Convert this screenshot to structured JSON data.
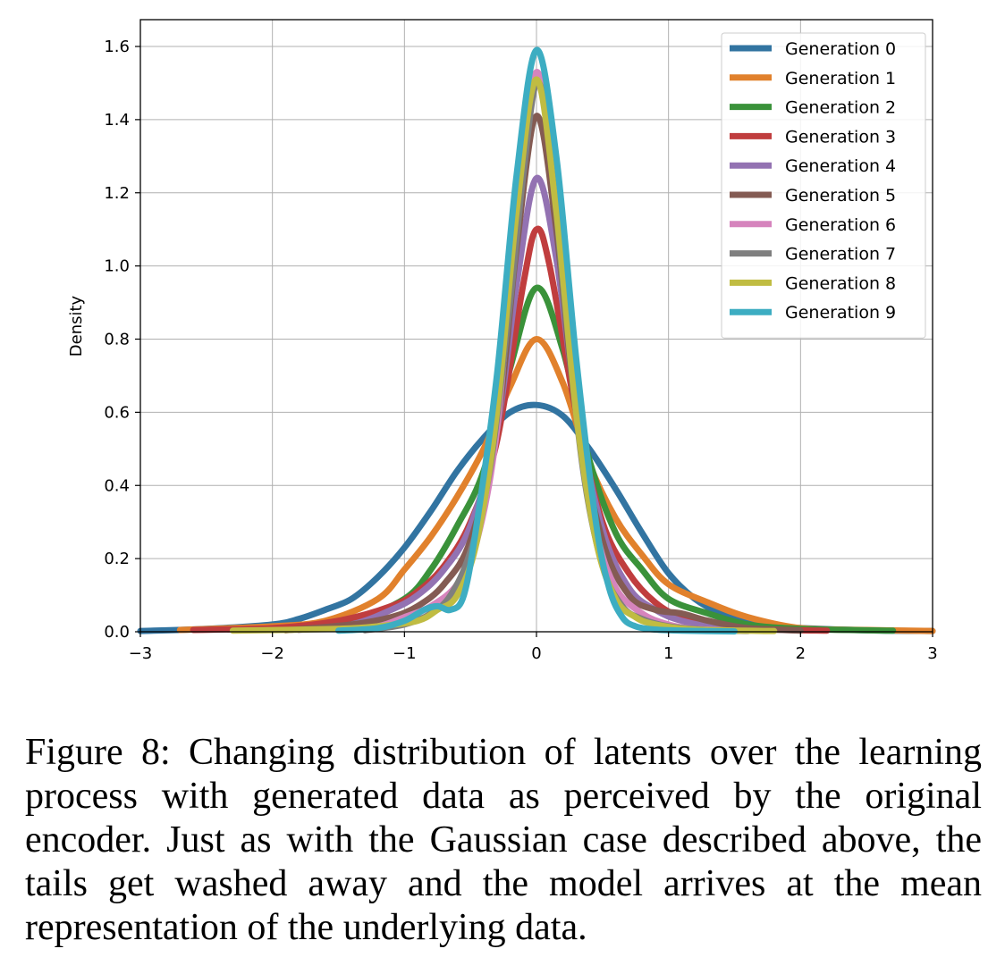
{
  "caption": "Figure 8: Changing distribution of latents over the learning process with generated data as perceived by the original encoder. Just as with the Gaussian case described above, the tails get washed away and the model arrives at the mean representation of the underlying data.",
  "chart_data": {
    "type": "line",
    "title": "",
    "xlabel": "",
    "ylabel": "Density",
    "xlim": [
      -3,
      3
    ],
    "ylim": [
      0,
      1.65
    ],
    "xticks": [
      -3,
      -2,
      -1,
      0,
      1,
      2,
      3
    ],
    "xtick_labels": [
      "−3",
      "−2",
      "−1",
      "0",
      "1",
      "2",
      "3"
    ],
    "yticks": [
      0.0,
      0.2,
      0.4,
      0.6,
      0.8,
      1.0,
      1.2,
      1.4,
      1.6
    ],
    "ytick_labels": [
      "0.0",
      "0.2",
      "0.4",
      "0.6",
      "0.8",
      "1.0",
      "1.2",
      "1.4",
      "1.6"
    ],
    "grid": true,
    "legend_position": "top-right",
    "series": [
      {
        "name": "Generation 0",
        "color": "#3274a1",
        "x": [
          -3.0,
          -2.5,
          -2.0,
          -1.8,
          -1.6,
          -1.4,
          -1.2,
          -1.0,
          -0.8,
          -0.6,
          -0.4,
          -0.2,
          0.0,
          0.2,
          0.4,
          0.6,
          0.8,
          1.0,
          1.2,
          1.4,
          1.6,
          1.8,
          2.0,
          2.5,
          3.0
        ],
        "y": [
          0.002,
          0.008,
          0.02,
          0.035,
          0.06,
          0.09,
          0.15,
          0.23,
          0.33,
          0.44,
          0.53,
          0.6,
          0.62,
          0.59,
          0.5,
          0.39,
          0.27,
          0.16,
          0.09,
          0.05,
          0.03,
          0.015,
          0.01,
          0.004,
          0.002
        ]
      },
      {
        "name": "Generation 1",
        "color": "#e1812c",
        "x": [
          -2.7,
          -2.0,
          -1.6,
          -1.2,
          -1.0,
          -0.8,
          -0.6,
          -0.4,
          -0.2,
          0.0,
          0.2,
          0.4,
          0.6,
          0.8,
          1.0,
          1.3,
          1.6,
          2.0,
          2.5,
          3.0
        ],
        "y": [
          0.005,
          0.015,
          0.03,
          0.09,
          0.17,
          0.26,
          0.37,
          0.5,
          0.67,
          0.8,
          0.68,
          0.46,
          0.31,
          0.21,
          0.13,
          0.08,
          0.04,
          0.01,
          0.005,
          0.002
        ]
      },
      {
        "name": "Generation 2",
        "color": "#3a923a",
        "x": [
          -2.3,
          -1.8,
          -1.4,
          -1.0,
          -0.8,
          -0.6,
          -0.4,
          -0.2,
          0.0,
          0.2,
          0.4,
          0.6,
          0.8,
          1.0,
          1.3,
          1.6,
          2.0,
          2.7
        ],
        "y": [
          0.005,
          0.01,
          0.03,
          0.09,
          0.17,
          0.29,
          0.44,
          0.72,
          0.94,
          0.77,
          0.47,
          0.27,
          0.17,
          0.09,
          0.05,
          0.02,
          0.008,
          0.003
        ]
      },
      {
        "name": "Generation 3",
        "color": "#c03d3e",
        "x": [
          -2.6,
          -2.0,
          -1.5,
          -1.1,
          -0.9,
          -0.7,
          -0.5,
          -0.3,
          -0.1,
          0.0,
          0.1,
          0.3,
          0.5,
          0.7,
          0.9,
          1.1,
          1.4,
          1.8,
          2.2
        ],
        "y": [
          0.005,
          0.01,
          0.03,
          0.07,
          0.11,
          0.18,
          0.3,
          0.52,
          0.95,
          1.1,
          1.0,
          0.6,
          0.3,
          0.16,
          0.08,
          0.04,
          0.015,
          0.006,
          0.003
        ]
      },
      {
        "name": "Generation 4",
        "color": "#9372b2",
        "x": [
          -1.8,
          -1.4,
          -1.1,
          -0.9,
          -0.7,
          -0.5,
          -0.3,
          -0.15,
          0.0,
          0.15,
          0.3,
          0.5,
          0.7,
          0.9,
          1.1,
          1.4,
          1.8
        ],
        "y": [
          0.005,
          0.02,
          0.06,
          0.1,
          0.17,
          0.29,
          0.55,
          0.95,
          1.24,
          1.02,
          0.62,
          0.28,
          0.12,
          0.06,
          0.03,
          0.01,
          0.004
        ]
      },
      {
        "name": "Generation 5",
        "color": "#845b53",
        "x": [
          -1.9,
          -1.4,
          -1.1,
          -0.9,
          -0.7,
          -0.5,
          -0.3,
          -0.15,
          0.0,
          0.15,
          0.3,
          0.5,
          0.7,
          0.9,
          1.1,
          1.3,
          1.6,
          2.0
        ],
        "y": [
          0.004,
          0.02,
          0.04,
          0.07,
          0.13,
          0.25,
          0.55,
          1.05,
          1.41,
          1.1,
          0.6,
          0.25,
          0.1,
          0.06,
          0.05,
          0.03,
          0.01,
          0.003
        ]
      },
      {
        "name": "Generation 6",
        "color": "#d684bd",
        "x": [
          -1.5,
          -1.2,
          -1.0,
          -0.8,
          -0.6,
          -0.45,
          -0.3,
          -0.15,
          0.0,
          0.15,
          0.3,
          0.45,
          0.6,
          0.8,
          1.0,
          1.2,
          1.5
        ],
        "y": [
          0.004,
          0.015,
          0.04,
          0.07,
          0.13,
          0.25,
          0.55,
          1.15,
          1.53,
          1.2,
          0.62,
          0.28,
          0.12,
          0.05,
          0.02,
          0.008,
          0.003
        ]
      },
      {
        "name": "Generation 7",
        "color": "#7f7f7f",
        "x": [
          -1.3,
          -1.0,
          -0.8,
          -0.65,
          -0.5,
          -0.35,
          -0.2,
          -0.1,
          0.0,
          0.1,
          0.2,
          0.35,
          0.5,
          0.65,
          0.8,
          1.0,
          1.3,
          1.6
        ],
        "y": [
          0.004,
          0.02,
          0.05,
          0.1,
          0.22,
          0.45,
          0.9,
          1.25,
          1.5,
          1.35,
          0.95,
          0.45,
          0.18,
          0.07,
          0.035,
          0.015,
          0.005,
          0.002
        ]
      },
      {
        "name": "Generation 8",
        "color": "#c0bc42",
        "x": [
          -2.3,
          -1.5,
          -1.2,
          -0.9,
          -0.75,
          -0.6,
          -0.45,
          -0.3,
          -0.15,
          0.0,
          0.15,
          0.3,
          0.45,
          0.6,
          0.75,
          0.9,
          1.2,
          1.8
        ],
        "y": [
          0.003,
          0.008,
          0.015,
          0.03,
          0.06,
          0.1,
          0.25,
          0.6,
          1.15,
          1.51,
          1.15,
          0.6,
          0.25,
          0.09,
          0.04,
          0.02,
          0.006,
          0.002
        ]
      },
      {
        "name": "Generation 9",
        "color": "#3dadc2",
        "x": [
          -1.5,
          -1.2,
          -1.0,
          -0.85,
          -0.75,
          -0.65,
          -0.55,
          -0.45,
          -0.3,
          -0.15,
          0.0,
          0.15,
          0.3,
          0.45,
          0.55,
          0.65,
          0.75,
          0.9,
          1.1,
          1.5
        ],
        "y": [
          0.003,
          0.01,
          0.03,
          0.06,
          0.07,
          0.06,
          0.1,
          0.3,
          0.7,
          1.25,
          1.59,
          1.3,
          0.75,
          0.3,
          0.12,
          0.04,
          0.015,
          0.006,
          0.003,
          0.001
        ]
      }
    ]
  }
}
